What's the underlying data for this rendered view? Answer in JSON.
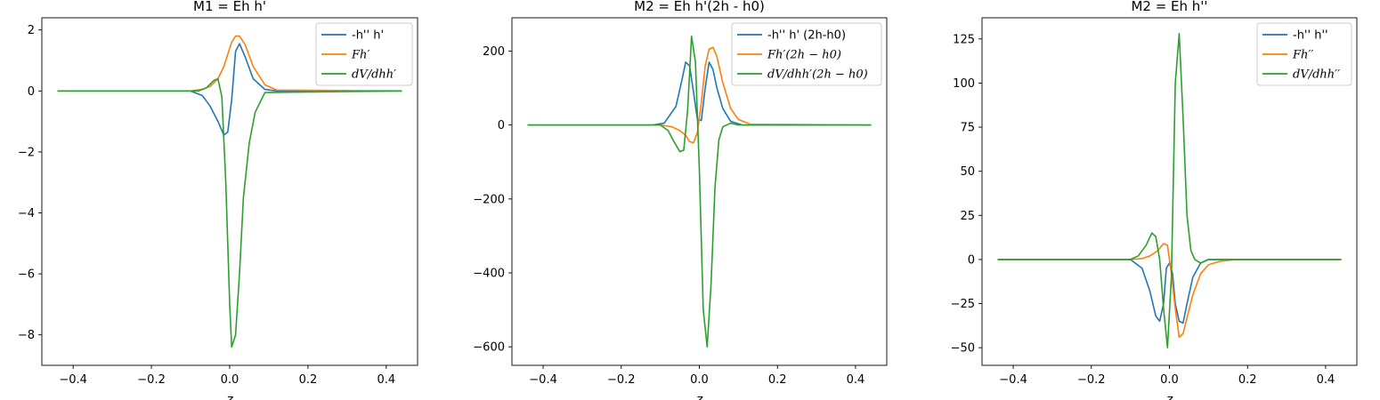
{
  "chart_data": [
    {
      "type": "line",
      "title": "M1 = Eh h'",
      "xlabel": "z",
      "ylabel": "",
      "xlim": [
        -0.48,
        0.48
      ],
      "ylim": [
        -9,
        2.4
      ],
      "xticks": [
        -0.4,
        -0.2,
        0.0,
        0.2,
        0.4
      ],
      "yticks": [
        -8,
        -6,
        -4,
        -2,
        0,
        2
      ],
      "legend_position": "top-right",
      "series": [
        {
          "name": "-h'' h'",
          "color": "#1f77b4",
          "x": [
            -0.44,
            -0.1,
            -0.07,
            -0.05,
            -0.03,
            -0.015,
            -0.005,
            0.005,
            0.015,
            0.025,
            0.04,
            0.06,
            0.09,
            0.12,
            0.44
          ],
          "y": [
            0,
            0,
            -0.15,
            -0.5,
            -1.0,
            -1.45,
            -1.35,
            -0.3,
            1.3,
            1.55,
            1.1,
            0.4,
            0.05,
            0,
            0
          ]
        },
        {
          "name": "Fh′",
          "color": "#ff7f0e",
          "x": [
            -0.44,
            -0.1,
            -0.07,
            -0.05,
            -0.03,
            -0.015,
            -0.005,
            0.005,
            0.015,
            0.025,
            0.04,
            0.06,
            0.09,
            0.12,
            0.44
          ],
          "y": [
            0,
            0,
            0.05,
            0.15,
            0.4,
            0.8,
            1.2,
            1.6,
            1.8,
            1.8,
            1.5,
            0.8,
            0.2,
            0.03,
            0
          ]
        },
        {
          "name": "dV/dhh′",
          "color": "#2ca02c",
          "x": [
            -0.44,
            -0.08,
            -0.06,
            -0.04,
            -0.03,
            -0.02,
            -0.01,
            0.0,
            0.005,
            0.015,
            0.025,
            0.035,
            0.05,
            0.065,
            0.09,
            0.44
          ],
          "y": [
            0,
            0,
            0.1,
            0.35,
            0.4,
            -0.2,
            -3.0,
            -7.0,
            -8.4,
            -8.0,
            -6.0,
            -3.5,
            -1.7,
            -0.7,
            -0.05,
            0
          ]
        }
      ]
    },
    {
      "type": "line",
      "title": "M2 = Eh h'(2h - h0)",
      "xlabel": "z",
      "ylabel": "",
      "xlim": [
        -0.48,
        0.48
      ],
      "ylim": [
        -650,
        290
      ],
      "xticks": [
        -0.4,
        -0.2,
        0.0,
        0.2,
        0.4
      ],
      "yticks": [
        -600,
        -400,
        -200,
        0,
        200
      ],
      "legend_position": "top-right",
      "series": [
        {
          "name": "-h'' h' (2h-h0)",
          "color": "#1f77b4",
          "x": [
            -0.44,
            -0.12,
            -0.09,
            -0.06,
            -0.045,
            -0.035,
            -0.025,
            -0.015,
            -0.005,
            0.005,
            0.015,
            0.025,
            0.035,
            0.045,
            0.06,
            0.08,
            0.11,
            0.44
          ],
          "y": [
            0,
            0,
            5,
            50,
            120,
            170,
            160,
            90,
            15,
            12,
            100,
            170,
            150,
            100,
            45,
            10,
            0,
            0
          ]
        },
        {
          "name": "Fh′(2h − h0)",
          "color": "#ff7f0e",
          "x": [
            -0.44,
            -0.1,
            -0.07,
            -0.05,
            -0.035,
            -0.025,
            -0.015,
            -0.005,
            0.005,
            0.015,
            0.025,
            0.035,
            0.045,
            0.06,
            0.08,
            0.1,
            0.13,
            0.44
          ],
          "y": [
            0,
            0,
            -5,
            -15,
            -28,
            -45,
            -48,
            -20,
            60,
            160,
            205,
            210,
            185,
            115,
            45,
            15,
            2,
            0
          ]
        },
        {
          "name": "dV/dhh′(2h − h0)",
          "color": "#2ca02c",
          "x": [
            -0.44,
            -0.1,
            -0.08,
            -0.065,
            -0.05,
            -0.04,
            -0.03,
            -0.02,
            -0.01,
            0.0,
            0.01,
            0.02,
            0.03,
            0.04,
            0.05,
            0.06,
            0.08,
            0.1,
            0.44
          ],
          "y": [
            0,
            0,
            -15,
            -45,
            -72,
            -68,
            40,
            240,
            170,
            -120,
            -500,
            -600,
            -430,
            -170,
            -40,
            -5,
            5,
            0,
            0
          ]
        }
      ]
    },
    {
      "type": "line",
      "title": "M2 = Eh h''",
      "xlabel": "z",
      "ylabel": "",
      "xlim": [
        -0.48,
        0.48
      ],
      "ylim": [
        -60,
        137
      ],
      "xticks": [
        -0.4,
        -0.2,
        0.0,
        0.2,
        0.4
      ],
      "yticks": [
        -50,
        -25,
        0,
        25,
        50,
        75,
        100,
        125
      ],
      "legend_position": "top-right",
      "series": [
        {
          "name": "-h'' h''",
          "color": "#1f77b4",
          "x": [
            -0.44,
            -0.1,
            -0.07,
            -0.05,
            -0.035,
            -0.025,
            -0.015,
            -0.008,
            0.0,
            0.008,
            0.015,
            0.025,
            0.035,
            0.045,
            0.06,
            0.08,
            0.1,
            0.44
          ],
          "y": [
            0,
            0,
            -5,
            -18,
            -32,
            -35,
            -25,
            -5,
            -2,
            -8,
            -25,
            -35,
            -36,
            -25,
            -10,
            -2,
            0,
            0
          ]
        },
        {
          "name": "Fh′′",
          "color": "#ff7f0e",
          "x": [
            -0.44,
            -0.1,
            -0.07,
            -0.05,
            -0.03,
            -0.015,
            -0.005,
            0.005,
            0.015,
            0.025,
            0.035,
            0.045,
            0.06,
            0.08,
            0.1,
            0.13,
            0.17,
            0.44
          ],
          "y": [
            0,
            0,
            0.5,
            2,
            5,
            9,
            8,
            -8,
            -28,
            -44,
            -42,
            -33,
            -20,
            -8,
            -3,
            -1,
            0,
            0
          ]
        },
        {
          "name": "dV/dhh′′",
          "color": "#2ca02c",
          "x": [
            -0.44,
            -0.1,
            -0.08,
            -0.06,
            -0.045,
            -0.035,
            -0.025,
            -0.015,
            -0.005,
            0.005,
            0.015,
            0.025,
            0.035,
            0.045,
            0.055,
            0.065,
            0.08,
            0.1,
            0.44
          ],
          "y": [
            0,
            0,
            2,
            8,
            15,
            13,
            0,
            -28,
            -50,
            -10,
            100,
            128,
            80,
            25,
            5,
            0,
            -2,
            0,
            0
          ]
        }
      ]
    }
  ]
}
